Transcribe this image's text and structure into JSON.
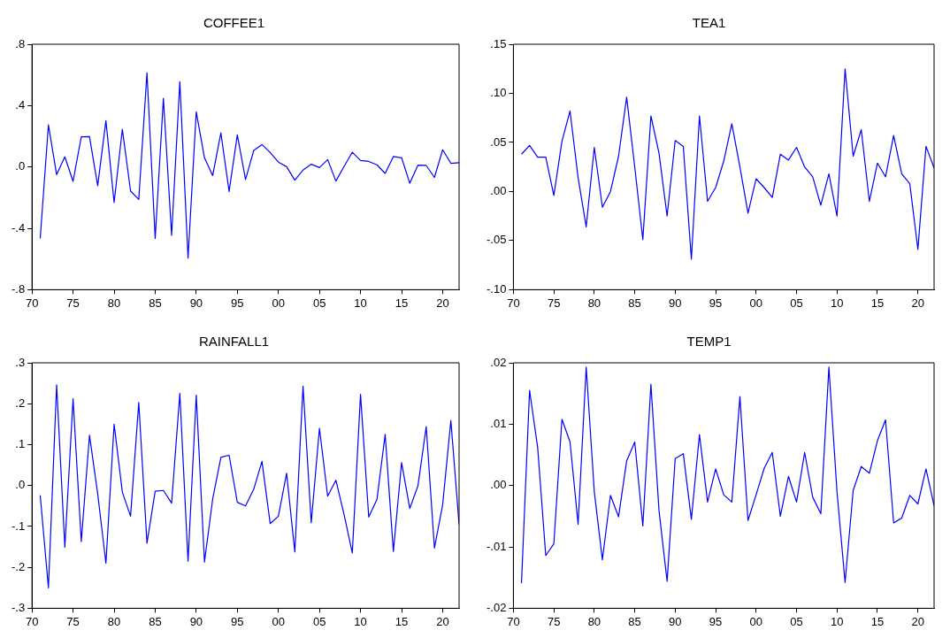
{
  "chart_data": [
    {
      "type": "line",
      "title": "COFFEE1",
      "marker": "none",
      "grid": false,
      "legend": false,
      "x": [
        1971,
        1972,
        1973,
        1974,
        1975,
        1976,
        1977,
        1978,
        1979,
        1980,
        1981,
        1982,
        1983,
        1984,
        1985,
        1986,
        1987,
        1988,
        1989,
        1990,
        1991,
        1992,
        1993,
        1994,
        1995,
        1996,
        1997,
        1998,
        1999,
        2000,
        2001,
        2002,
        2003,
        2004,
        2005,
        2006,
        2007,
        2008,
        2009,
        2010,
        2011,
        2012,
        2013,
        2014,
        2015,
        2016,
        2017,
        2018,
        2019,
        2020,
        2021,
        2022
      ],
      "series": [
        {
          "color": "#0000ff",
          "values": [
            -0.466,
            0.274,
            -0.05,
            0.066,
            -0.094,
            0.196,
            0.198,
            -0.122,
            0.302,
            -0.232,
            0.246,
            -0.156,
            -0.212,
            0.614,
            -0.466,
            0.448,
            -0.446,
            0.556,
            -0.594,
            0.36,
            0.06,
            -0.056,
            0.222,
            -0.16,
            0.21,
            -0.082,
            0.108,
            0.146,
            0.094,
            0.032,
            0.002,
            -0.086,
            -0.02,
            0.018,
            -0.004,
            0.048,
            -0.092,
            0.004,
            0.096,
            0.042,
            0.036,
            0.014,
            -0.042,
            0.068,
            0.06,
            -0.106,
            0.012,
            0.01,
            -0.068,
            0.112,
            0.024,
            0.028
          ]
        }
      ],
      "xlim": [
        1970,
        2022
      ],
      "xticks": [
        {
          "value": 1970,
          "label": "70"
        },
        {
          "value": 1975,
          "label": "75"
        },
        {
          "value": 1980,
          "label": "80"
        },
        {
          "value": 1985,
          "label": "85"
        },
        {
          "value": 1990,
          "label": "90"
        },
        {
          "value": 1995,
          "label": "95"
        },
        {
          "value": 2000,
          "label": "00"
        },
        {
          "value": 2005,
          "label": "05"
        },
        {
          "value": 2010,
          "label": "10"
        },
        {
          "value": 2015,
          "label": "15"
        },
        {
          "value": 2020,
          "label": "20"
        }
      ],
      "ylim": [
        -0.8,
        0.8
      ],
      "yticks": [
        {
          "value": -0.8,
          "label": "-.8"
        },
        {
          "value": -0.4,
          "label": "-.4"
        },
        {
          "value": 0,
          "label": ".0"
        },
        {
          "value": 0.4,
          "label": ".4"
        },
        {
          "value": 0.8,
          "label": ".8"
        }
      ]
    },
    {
      "type": "line",
      "title": "TEA1",
      "marker": "none",
      "grid": false,
      "legend": false,
      "x": [
        1971,
        1972,
        1973,
        1974,
        1975,
        1976,
        1977,
        1978,
        1979,
        1980,
        1981,
        1982,
        1983,
        1984,
        1985,
        1986,
        1987,
        1988,
        1989,
        1990,
        1991,
        1992,
        1993,
        1994,
        1995,
        1996,
        1997,
        1998,
        1999,
        2000,
        2001,
        2002,
        2003,
        2004,
        2005,
        2006,
        2007,
        2008,
        2009,
        2010,
        2011,
        2012,
        2013,
        2014,
        2015,
        2016,
        2017,
        2018,
        2019,
        2020,
        2021,
        2022
      ],
      "series": [
        {
          "color": "#0000ff",
          "values": [
            0.038,
            0.047,
            0.035,
            0.035,
            -0.004,
            0.051,
            0.082,
            0.014,
            -0.036,
            0.045,
            -0.016,
            0,
            0.036,
            0.096,
            0.025,
            -0.049,
            0.077,
            0.039,
            -0.025,
            0.052,
            0.046,
            -0.069,
            0.077,
            -0.01,
            0.004,
            0.031,
            0.069,
            0.025,
            -0.022,
            0.013,
            0.004,
            -0.006,
            0.038,
            0.032,
            0.045,
            0.025,
            0.015,
            -0.014,
            0.018,
            -0.025,
            0.125,
            0.036,
            0.063,
            -0.01,
            0.029,
            0.015,
            0.057,
            0.018,
            0.008,
            -0.059,
            0.046,
            0.024
          ]
        }
      ],
      "xlim": [
        1970,
        2022
      ],
      "xticks": [
        {
          "value": 1970,
          "label": "70"
        },
        {
          "value": 1975,
          "label": "75"
        },
        {
          "value": 1980,
          "label": "80"
        },
        {
          "value": 1985,
          "label": "85"
        },
        {
          "value": 1990,
          "label": "90"
        },
        {
          "value": 1995,
          "label": "95"
        },
        {
          "value": 2000,
          "label": "00"
        },
        {
          "value": 2005,
          "label": "05"
        },
        {
          "value": 2010,
          "label": "10"
        },
        {
          "value": 2015,
          "label": "15"
        },
        {
          "value": 2020,
          "label": "20"
        }
      ],
      "ylim": [
        -0.1,
        0.15
      ],
      "yticks": [
        {
          "value": -0.1,
          "label": "-.10"
        },
        {
          "value": -0.05,
          "label": "-.05"
        },
        {
          "value": 0,
          "label": ".00"
        },
        {
          "value": 0.05,
          "label": ".05"
        },
        {
          "value": 0.1,
          "label": ".10"
        },
        {
          "value": 0.15,
          "label": ".15"
        }
      ]
    },
    {
      "type": "line",
      "title": "RAINFALL1",
      "marker": "none",
      "grid": false,
      "legend": false,
      "x": [
        1971,
        1972,
        1973,
        1974,
        1975,
        1976,
        1977,
        1978,
        1979,
        1980,
        1981,
        1982,
        1983,
        1984,
        1985,
        1986,
        1987,
        1988,
        1989,
        1990,
        1991,
        1992,
        1993,
        1994,
        1995,
        1996,
        1997,
        1998,
        1999,
        2000,
        2001,
        2002,
        2003,
        2004,
        2005,
        2006,
        2007,
        2008,
        2009,
        2010,
        2011,
        2012,
        2013,
        2014,
        2015,
        2016,
        2017,
        2018,
        2019,
        2020,
        2021,
        2022
      ],
      "series": [
        {
          "color": "#0000ff",
          "values": [
            -0.024,
            -0.25,
            0.246,
            -0.151,
            0.212,
            -0.137,
            0.123,
            -0.02,
            -0.19,
            0.15,
            -0.016,
            -0.075,
            0.203,
            -0.141,
            -0.014,
            -0.012,
            -0.043,
            0.225,
            -0.185,
            0.221,
            -0.187,
            -0.033,
            0.069,
            0.074,
            -0.041,
            -0.05,
            -0.009,
            0.059,
            -0.093,
            -0.075,
            0.03,
            -0.162,
            0.243,
            -0.091,
            0.14,
            -0.026,
            0.013,
            -0.071,
            -0.165,
            0.223,
            -0.077,
            -0.034,
            0.125,
            -0.161,
            0.056,
            -0.056,
            0,
            0.144,
            -0.153,
            -0.047,
            0.159,
            -0.095
          ]
        }
      ],
      "xlim": [
        1970,
        2022
      ],
      "xticks": [
        {
          "value": 1970,
          "label": "70"
        },
        {
          "value": 1975,
          "label": "75"
        },
        {
          "value": 1980,
          "label": "80"
        },
        {
          "value": 1985,
          "label": "85"
        },
        {
          "value": 1990,
          "label": "90"
        },
        {
          "value": 1995,
          "label": "95"
        },
        {
          "value": 2000,
          "label": "00"
        },
        {
          "value": 2005,
          "label": "05"
        },
        {
          "value": 2010,
          "label": "10"
        },
        {
          "value": 2015,
          "label": "15"
        },
        {
          "value": 2020,
          "label": "20"
        }
      ],
      "ylim": [
        -0.3,
        0.3
      ],
      "yticks": [
        {
          "value": -0.3,
          "label": "-.3"
        },
        {
          "value": -0.2,
          "label": "-.2"
        },
        {
          "value": -0.1,
          "label": "-.1"
        },
        {
          "value": 0,
          "label": ".0"
        },
        {
          "value": 0.1,
          "label": ".1"
        },
        {
          "value": 0.2,
          "label": ".2"
        },
        {
          "value": 0.3,
          "label": ".3"
        }
      ]
    },
    {
      "type": "line",
      "title": "TEMP1",
      "marker": "none",
      "grid": false,
      "legend": false,
      "x": [
        1971,
        1972,
        1973,
        1974,
        1975,
        1976,
        1977,
        1978,
        1979,
        1980,
        1981,
        1982,
        1983,
        1984,
        1985,
        1986,
        1987,
        1988,
        1989,
        1990,
        1991,
        1992,
        1993,
        1994,
        1995,
        1996,
        1997,
        1998,
        1999,
        2000,
        2001,
        2002,
        2003,
        2004,
        2005,
        2006,
        2007,
        2008,
        2009,
        2010,
        2011,
        2012,
        2013,
        2014,
        2015,
        2016,
        2017,
        2018,
        2019,
        2020,
        2021,
        2022
      ],
      "series": [
        {
          "color": "#0000ff",
          "values": [
            -0.0159,
            0.0155,
            0.0062,
            -0.0114,
            -0.0095,
            0.0108,
            0.0071,
            -0.0063,
            0.0193,
            -0.001,
            -0.0121,
            -0.0016,
            -0.0051,
            0.004,
            0.0071,
            -0.0066,
            0.0165,
            -0.0041,
            -0.0156,
            0.0044,
            0.0052,
            -0.0055,
            0.0083,
            -0.0027,
            0.0027,
            -0.0015,
            -0.0027,
            0.0145,
            -0.0057,
            -0.0015,
            0.0028,
            0.0054,
            -0.005,
            0.0015,
            -0.0027,
            0.0054,
            -0.0019,
            -0.0046,
            0.0193,
            -0.001,
            -0.0158,
            -0.0008,
            0.0031,
            0.002,
            0.0073,
            0.0107,
            -0.0061,
            -0.0053,
            -0.0016,
            -0.003,
            0.0027,
            -0.0033
          ]
        }
      ],
      "xlim": [
        1970,
        2022
      ],
      "xticks": [
        {
          "value": 1970,
          "label": "70"
        },
        {
          "value": 1975,
          "label": "75"
        },
        {
          "value": 1980,
          "label": "80"
        },
        {
          "value": 1985,
          "label": "85"
        },
        {
          "value": 1990,
          "label": "90"
        },
        {
          "value": 1995,
          "label": "95"
        },
        {
          "value": 2000,
          "label": "00"
        },
        {
          "value": 2005,
          "label": "05"
        },
        {
          "value": 2010,
          "label": "10"
        },
        {
          "value": 2015,
          "label": "15"
        },
        {
          "value": 2020,
          "label": "20"
        }
      ],
      "ylim": [
        -0.02,
        0.02
      ],
      "yticks": [
        {
          "value": -0.02,
          "label": "-.02"
        },
        {
          "value": -0.01,
          "label": "-.01"
        },
        {
          "value": 0,
          "label": ".00"
        },
        {
          "value": 0.01,
          "label": ".01"
        },
        {
          "value": 0.02,
          "label": ".02"
        }
      ]
    }
  ]
}
